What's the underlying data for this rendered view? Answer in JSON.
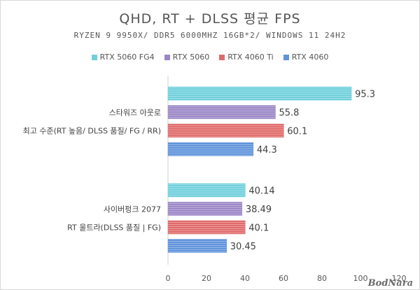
{
  "chart_data": {
    "type": "bar",
    "orientation": "horizontal",
    "title": "QHD, RT + DLSS 평균 FPS",
    "subtitle": "RYZEN 9 9950X/ DDR5 6000MHZ 16GB*2/ WINDOWS 11 24H2",
    "categories": [
      {
        "lines": [
          "스타워즈 아웃로",
          "최고 수준(RT 높음/ DLSS 품질/ FG / RR)"
        ]
      },
      {
        "lines": [
          "사이버펑크 2077",
          "RT 울트라(DLSS 품질 | FG)"
        ]
      }
    ],
    "series": [
      {
        "name": "RTX 5060 FG4",
        "color": "#6fd0dc",
        "values": [
          95.3,
          40.14
        ],
        "labels": [
          "95.3",
          "40.14"
        ]
      },
      {
        "name": "RTX 5060",
        "color": "#9b86c6",
        "values": [
          55.8,
          38.49
        ],
        "labels": [
          "55.8",
          "38.49"
        ]
      },
      {
        "name": "RTX 4060 Ti",
        "color": "#e06a6a",
        "values": [
          60.1,
          40.1
        ],
        "labels": [
          "60.1",
          "40.1"
        ]
      },
      {
        "name": "RTX 4060",
        "color": "#5f93db",
        "values": [
          44.3,
          30.45
        ],
        "labels": [
          "44.3",
          "30.45"
        ]
      }
    ],
    "xlim": [
      0,
      120
    ],
    "xticks": [
      "0",
      "20",
      "40",
      "60",
      "80",
      "100",
      "120"
    ],
    "legend": "top",
    "grid": false
  },
  "watermark": "BodNara"
}
